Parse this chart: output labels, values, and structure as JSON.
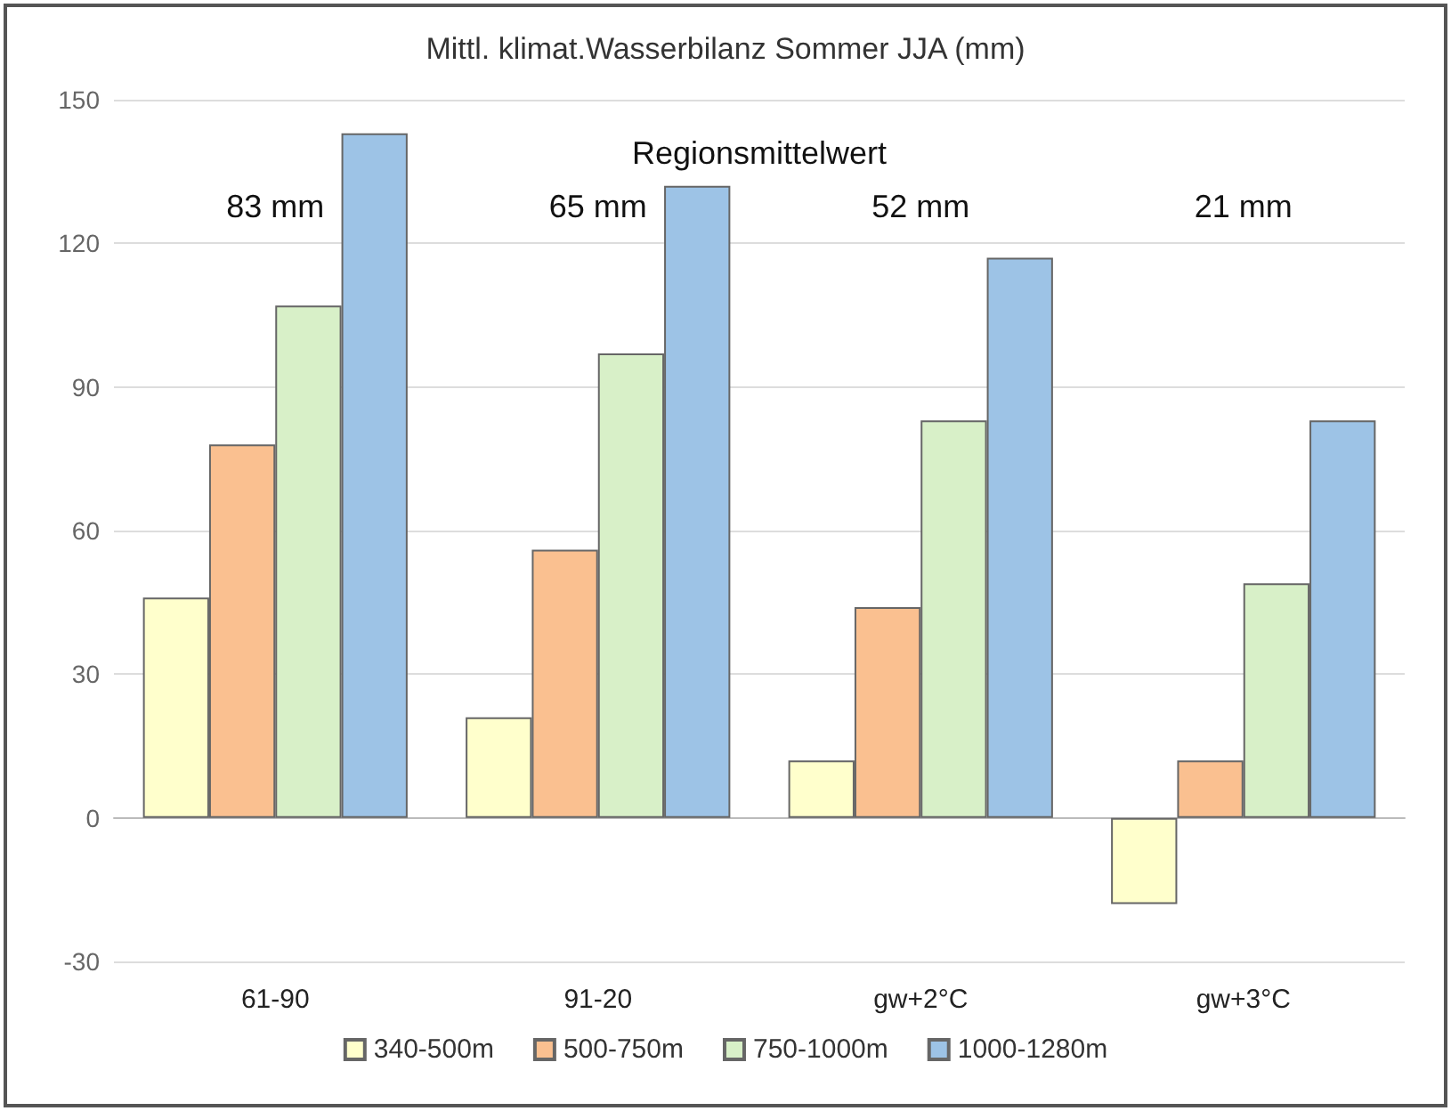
{
  "chart_data": {
    "type": "bar",
    "title": "Mittl. klimat.Wasserbilanz Sommer JJA (mm)",
    "categories": [
      "61-90",
      "91-20",
      "gw+2°C",
      "gw+3°C"
    ],
    "series": [
      {
        "name": "340-500m",
        "color": "#ffffcc",
        "values": [
          46,
          21,
          12,
          -18
        ]
      },
      {
        "name": "500-750m",
        "color": "#fac090",
        "values": [
          78,
          56,
          44,
          12
        ]
      },
      {
        "name": "750-1000m",
        "color": "#d8f0c8",
        "values": [
          107,
          97,
          83,
          49
        ]
      },
      {
        "name": "1000-1280m",
        "color": "#9dc3e6",
        "values": [
          143,
          132,
          117,
          83
        ]
      }
    ],
    "ylim": [
      -30,
      150
    ],
    "yticks": [
      -30,
      0,
      30,
      60,
      90,
      120,
      150
    ],
    "grid": "y",
    "legend": "bottom",
    "annotations": [
      "Regionsmittelwert",
      "83 mm",
      "65 mm",
      "52 mm",
      "21 mm"
    ]
  }
}
